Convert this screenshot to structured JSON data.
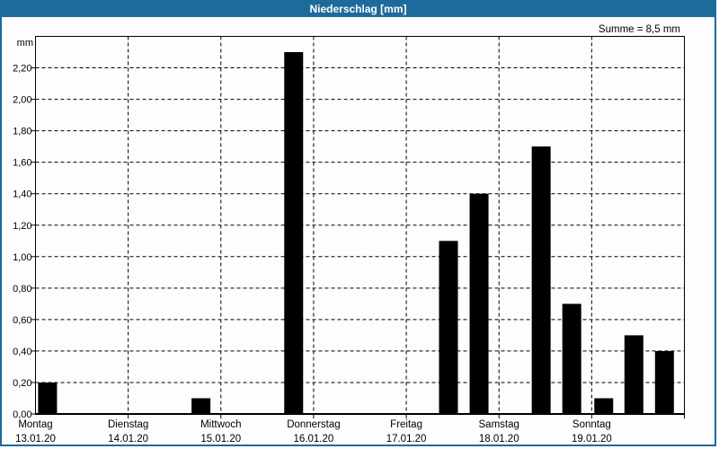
{
  "window": {
    "title": "Niederschlag [mm]",
    "title_bar_color": "#1e6a9b",
    "frame_color": "#1e6a9b"
  },
  "chart_data": {
    "type": "bar",
    "title": "Niederschlag [mm]",
    "unit_label": "mm",
    "sum_label": "Summe = 8,5 mm",
    "sum_value_mm": 8.5,
    "bar_color": "#000000",
    "plot_background": "#fdfdfd",
    "grid": "dashed",
    "legend": "none",
    "ylim": [
      0,
      2.4
    ],
    "ytick_step": 0.2,
    "ytick_labels": [
      "0,00",
      "0,20",
      "0,40",
      "0,60",
      "0,80",
      "1,00",
      "1,20",
      "1,40",
      "1,60",
      "1,80",
      "2,00",
      "2,20"
    ],
    "categories": [
      {
        "name": "Montag",
        "date": "13.01.20"
      },
      {
        "name": "Dienstag",
        "date": "14.01.20"
      },
      {
        "name": "Mittwoch",
        "date": "15.01.20"
      },
      {
        "name": "Donnerstag",
        "date": "16.01.20"
      },
      {
        "name": "Freitag",
        "date": "17.01.20"
      },
      {
        "name": "Samstag",
        "date": "18.01.20"
      },
      {
        "name": "Sonntag",
        "date": "19.01.20"
      }
    ],
    "bars": [
      {
        "day_index": 0,
        "day_name": "Montag",
        "time_fraction": 0.13,
        "value_mm": 0.2
      },
      {
        "day_index": 1,
        "day_name": "Dienstag",
        "time_fraction": 0.785,
        "value_mm": 0.1
      },
      {
        "day_index": 2,
        "day_name": "Mittwoch",
        "time_fraction": 0.785,
        "value_mm": 2.3
      },
      {
        "day_index": 4,
        "day_name": "Freitag",
        "time_fraction": 0.455,
        "value_mm": 1.1
      },
      {
        "day_index": 4,
        "day_name": "Freitag",
        "time_fraction": 0.785,
        "value_mm": 1.4
      },
      {
        "day_index": 5,
        "day_name": "Samstag",
        "time_fraction": 0.455,
        "value_mm": 1.7
      },
      {
        "day_index": 5,
        "day_name": "Samstag",
        "time_fraction": 0.785,
        "value_mm": 0.7
      },
      {
        "day_index": 6,
        "day_name": "Sonntag",
        "time_fraction": 0.13,
        "value_mm": 0.1
      },
      {
        "day_index": 6,
        "day_name": "Sonntag",
        "time_fraction": 0.455,
        "value_mm": 0.5
      },
      {
        "day_index": 6,
        "day_name": "Sonntag",
        "time_fraction": 0.785,
        "value_mm": 0.4
      }
    ]
  }
}
